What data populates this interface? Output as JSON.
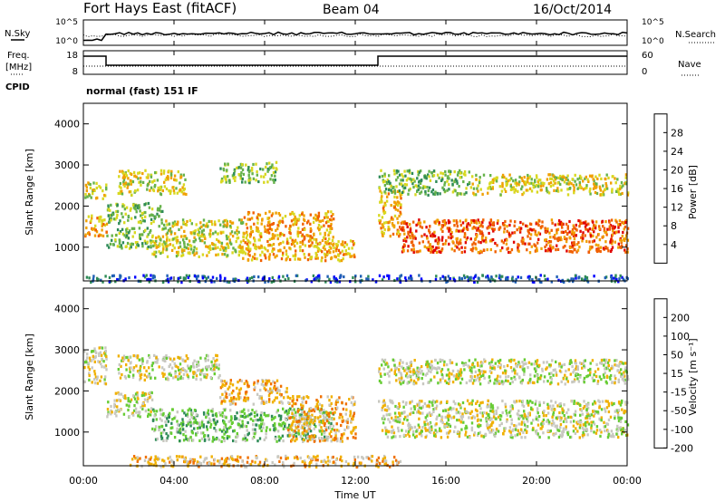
{
  "header": {
    "station": "Fort Hays East (fitACF)",
    "beam": "Beam 04",
    "date": "16/Oct/2014"
  },
  "noise_panel": {
    "left_label": "N.Sky",
    "right_label": "N.Search",
    "left_ticks": [
      "10^5",
      "10^0"
    ],
    "right_ticks": [
      "10^5",
      "10^0"
    ]
  },
  "freq_panel": {
    "left_label_line1": "Freq.",
    "left_label_line2": "[MHz]",
    "right_label": "Nave",
    "left_ticks": [
      "18",
      "8"
    ],
    "right_ticks": [
      "60",
      "0"
    ],
    "cpid_label": "CPID",
    "mode_text": "normal (fast) 151 IF"
  },
  "chart_data": [
    {
      "type": "heatmap",
      "title": "Power",
      "ylabel": "Slant Range [km]",
      "xlabel": "Time UT",
      "x_ticks": [
        "00:00",
        "04:00",
        "08:00",
        "12:00",
        "16:00",
        "20:00",
        "00:00"
      ],
      "y_ticks": [
        "1000",
        "2000",
        "3000",
        "4000"
      ],
      "ylim": [
        180,
        4500
      ],
      "colorbar": {
        "label": "Power [dB]",
        "ticks": [
          "4",
          "8",
          "12",
          "16",
          "20",
          "24",
          "28"
        ],
        "colors": [
          "#0000ff",
          "#1f5fb4",
          "#2e8b57",
          "#66b24a",
          "#d8d820",
          "#f0a000",
          "#f06000",
          "#e00000"
        ]
      },
      "bands": [
        {
          "t0": 0.0,
          "t1": 1.0,
          "r0": 1300,
          "r1": 1800,
          "level": 5
        },
        {
          "t0": 0.0,
          "t1": 1.0,
          "r0": 2200,
          "r1": 2600,
          "level": 4
        },
        {
          "t0": 1.0,
          "t1": 3.0,
          "r0": 1000,
          "r1": 1500,
          "level": 3
        },
        {
          "t0": 1.0,
          "t1": 3.5,
          "r0": 1600,
          "r1": 2100,
          "level": 3
        },
        {
          "t0": 1.5,
          "t1": 4.5,
          "r0": 2300,
          "r1": 2900,
          "level": 4
        },
        {
          "t0": 3.0,
          "t1": 7.0,
          "r0": 800,
          "r1": 1700,
          "level": 4
        },
        {
          "t0": 6.0,
          "t1": 8.5,
          "r0": 2600,
          "r1": 3100,
          "level": 3
        },
        {
          "t0": 7.0,
          "t1": 11.0,
          "r0": 700,
          "r1": 1900,
          "level": 5
        },
        {
          "t0": 11.0,
          "t1": 12.0,
          "r0": 700,
          "r1": 1200,
          "level": 5
        },
        {
          "t0": 13.0,
          "t1": 14.0,
          "r0": 1300,
          "r1": 2400,
          "level": 5
        },
        {
          "t0": 13.0,
          "t1": 17.0,
          "r0": 2300,
          "r1": 2900,
          "level": 3
        },
        {
          "t0": 14.0,
          "t1": 24.0,
          "r0": 900,
          "r1": 1700,
          "level": 6
        },
        {
          "t0": 17.0,
          "t1": 24.0,
          "r0": 2300,
          "r1": 2800,
          "level": 4
        },
        {
          "t0": 0.0,
          "t1": 24.0,
          "r0": 180,
          "r1": 350,
          "level": 1
        }
      ]
    },
    {
      "type": "heatmap",
      "title": "Velocity",
      "ylabel": "Slant Range [km]",
      "xlabel": "Time UT",
      "x_ticks": [
        "00:00",
        "04:00",
        "08:00",
        "12:00",
        "16:00",
        "20:00",
        "00:00"
      ],
      "y_ticks": [
        "1000",
        "2000",
        "3000",
        "4000"
      ],
      "ylim": [
        180,
        4500
      ],
      "colorbar": {
        "label": "Velocity [m s⁻¹]",
        "ticks": [
          "200",
          "100",
          "50",
          "15",
          "-15",
          "-50",
          "-100",
          "-200"
        ],
        "colors": [
          "#0000ff",
          "#1f5fb4",
          "#2e8b57",
          "#66cc33",
          "#c8c8c0",
          "#f0b000",
          "#f07000",
          "#e00000"
        ]
      },
      "bands": [
        {
          "t0": 0.0,
          "t1": 1.0,
          "r0": 2200,
          "r1": 3100,
          "level": 4
        },
        {
          "t0": 1.0,
          "t1": 3.0,
          "r0": 1400,
          "r1": 2000,
          "level": 4
        },
        {
          "t0": 1.5,
          "t1": 6.0,
          "r0": 2300,
          "r1": 2900,
          "level": 4
        },
        {
          "t0": 3.0,
          "t1": 11.0,
          "r0": 800,
          "r1": 1600,
          "level": 3
        },
        {
          "t0": 6.0,
          "t1": 9.0,
          "r0": 1700,
          "r1": 2300,
          "level": 5
        },
        {
          "t0": 9.0,
          "t1": 12.0,
          "r0": 800,
          "r1": 1900,
          "level": 5
        },
        {
          "t0": 13.0,
          "t1": 24.0,
          "r0": 900,
          "r1": 1800,
          "level": 4
        },
        {
          "t0": 13.0,
          "t1": 24.0,
          "r0": 2200,
          "r1": 2800,
          "level": 4
        },
        {
          "t0": 2.0,
          "t1": 14.0,
          "r0": 180,
          "r1": 450,
          "level": 5
        }
      ]
    }
  ]
}
